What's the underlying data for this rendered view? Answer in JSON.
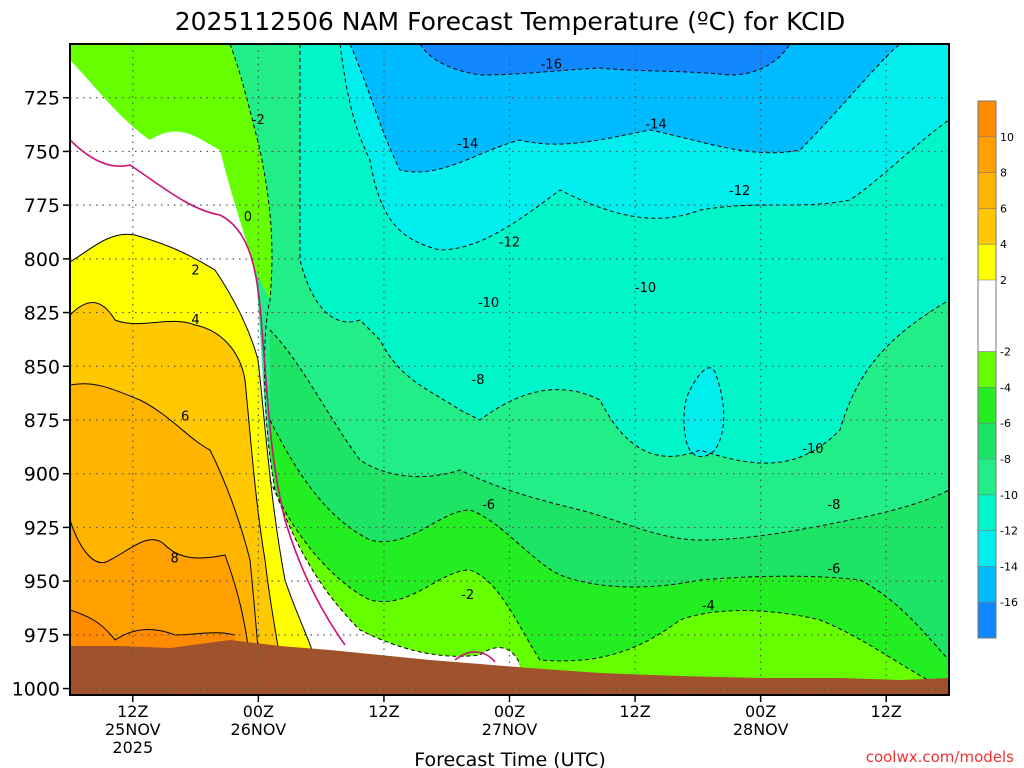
{
  "chart_data": {
    "type": "heatmap",
    "title": "2025112506 NAM Forecast Temperature (ºC) for KCID",
    "xlabel": "Forecast Time (UTC)",
    "ylabel": "",
    "ylim": [
      1003,
      700
    ],
    "y_ticks": [
      725,
      750,
      775,
      800,
      825,
      850,
      875,
      900,
      925,
      950,
      975,
      1000
    ],
    "x_ticks": [
      {
        "hour": 6,
        "lines": [
          "12Z",
          "25NOV",
          "2025"
        ]
      },
      {
        "hour": 18,
        "lines": [
          "00Z",
          "26NOV"
        ]
      },
      {
        "hour": 30,
        "lines": [
          "12Z"
        ]
      },
      {
        "hour": 42,
        "lines": [
          "00Z",
          "27NOV"
        ]
      },
      {
        "hour": 54,
        "lines": [
          "12Z"
        ]
      },
      {
        "hour": 66,
        "lines": [
          "00Z",
          "28NOV"
        ]
      },
      {
        "hour": 78,
        "lines": [
          "12Z"
        ]
      }
    ],
    "xlim": [
      0,
      84
    ],
    "grid": true,
    "colorbar": {
      "placement": "right",
      "labels": [
        10,
        8,
        6,
        4,
        2,
        -2,
        -4,
        -6,
        -8,
        -10,
        -12,
        -14,
        -16
      ],
      "bins": [
        {
          "from": 10,
          "to": 12,
          "color": "#ff8c00"
        },
        {
          "from": 8,
          "to": 10,
          "color": "#ffa000"
        },
        {
          "from": 6,
          "to": 8,
          "color": "#ffb400"
        },
        {
          "from": 4,
          "to": 6,
          "color": "#ffc800"
        },
        {
          "from": 2,
          "to": 4,
          "color": "#ffff00"
        },
        {
          "from": -2,
          "to": 2,
          "color": "#ffffff"
        },
        {
          "from": -4,
          "to": -2,
          "color": "#66ff00"
        },
        {
          "from": -6,
          "to": -4,
          "color": "#22ee22"
        },
        {
          "from": -8,
          "to": -6,
          "color": "#1ee466"
        },
        {
          "from": -10,
          "to": -8,
          "color": "#22ee88"
        },
        {
          "from": -12,
          "to": -10,
          "color": "#00f5c8"
        },
        {
          "from": -14,
          "to": -12,
          "color": "#00eeee"
        },
        {
          "from": -16,
          "to": -14,
          "color": "#00bbff"
        },
        {
          "from": -18,
          "to": -16,
          "color": "#1188ff"
        }
      ]
    },
    "contour_labels": [
      {
        "text": "-16",
        "hour": 46,
        "p": 709
      },
      {
        "text": "-14",
        "hour": 38,
        "p": 746
      },
      {
        "text": "-14",
        "hour": 56,
        "p": 737
      },
      {
        "text": "-12",
        "hour": 42,
        "p": 792
      },
      {
        "text": "-12",
        "hour": 64,
        "p": 768
      },
      {
        "text": "-10",
        "hour": 40,
        "p": 820
      },
      {
        "text": "-10",
        "hour": 55,
        "p": 813
      },
      {
        "text": "-10",
        "hour": 71,
        "p": 888
      },
      {
        "text": "-8",
        "hour": 39,
        "p": 856
      },
      {
        "text": "-8",
        "hour": 73,
        "p": 914
      },
      {
        "text": "-6",
        "hour": 40,
        "p": 914
      },
      {
        "text": "-6",
        "hour": 73,
        "p": 944
      },
      {
        "text": "-4",
        "hour": 61,
        "p": 961
      },
      {
        "text": "-2",
        "hour": 18,
        "p": 735
      },
      {
        "text": "-2",
        "hour": 38,
        "p": 956
      },
      {
        "text": "0",
        "hour": 17,
        "p": 780
      },
      {
        "text": "2",
        "hour": 12,
        "p": 805
      },
      {
        "text": "4",
        "hour": 12,
        "p": 828
      },
      {
        "text": "6",
        "hour": 11,
        "p": 873
      },
      {
        "text": "8",
        "hour": 10,
        "p": 939
      }
    ]
  },
  "footer": {
    "credit": "coolwx.com/models"
  }
}
